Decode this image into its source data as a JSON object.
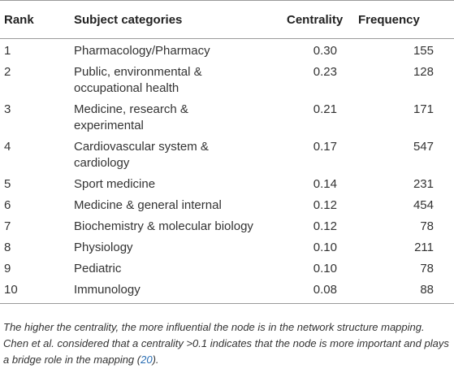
{
  "table": {
    "headers": {
      "rank": "Rank",
      "subject": "Subject categories",
      "centrality": "Centrality",
      "frequency": "Frequency"
    },
    "rows": [
      {
        "rank": "1",
        "subject_lines": [
          "Pharmacology/Pharmacy"
        ],
        "centrality": "0.30",
        "frequency": "155"
      },
      {
        "rank": "2",
        "subject_lines": [
          "Public, environmental &",
          "occupational health"
        ],
        "centrality": "0.23",
        "frequency": "128"
      },
      {
        "rank": "3",
        "subject_lines": [
          "Medicine, research &",
          "experimental"
        ],
        "centrality": "0.21",
        "frequency": "171"
      },
      {
        "rank": "4",
        "subject_lines": [
          "Cardiovascular system &",
          "cardiology"
        ],
        "centrality": "0.17",
        "frequency": "547"
      },
      {
        "rank": "5",
        "subject_lines": [
          "Sport medicine"
        ],
        "centrality": "0.14",
        "frequency": "231"
      },
      {
        "rank": "6",
        "subject_lines": [
          "Medicine & general internal"
        ],
        "centrality": "0.12",
        "frequency": "454"
      },
      {
        "rank": "7",
        "subject_lines": [
          "Biochemistry & molecular biology"
        ],
        "centrality": "0.12",
        "frequency": "78"
      },
      {
        "rank": "8",
        "subject_lines": [
          "Physiology"
        ],
        "centrality": "0.10",
        "frequency": "211"
      },
      {
        "rank": "9",
        "subject_lines": [
          "Pediatric"
        ],
        "centrality": "0.10",
        "frequency": "78"
      },
      {
        "rank": "10",
        "subject_lines": [
          "Immunology"
        ],
        "centrality": "0.08",
        "frequency": "88"
      }
    ]
  },
  "footnote": {
    "text": "The higher the centrality, the more influential the node is in the network structure mapping. Chen et al. considered that a centrality >0.1 indicates that the node is more important and plays a bridge role in the mapping (",
    "ref": "20",
    "tail": ")."
  }
}
